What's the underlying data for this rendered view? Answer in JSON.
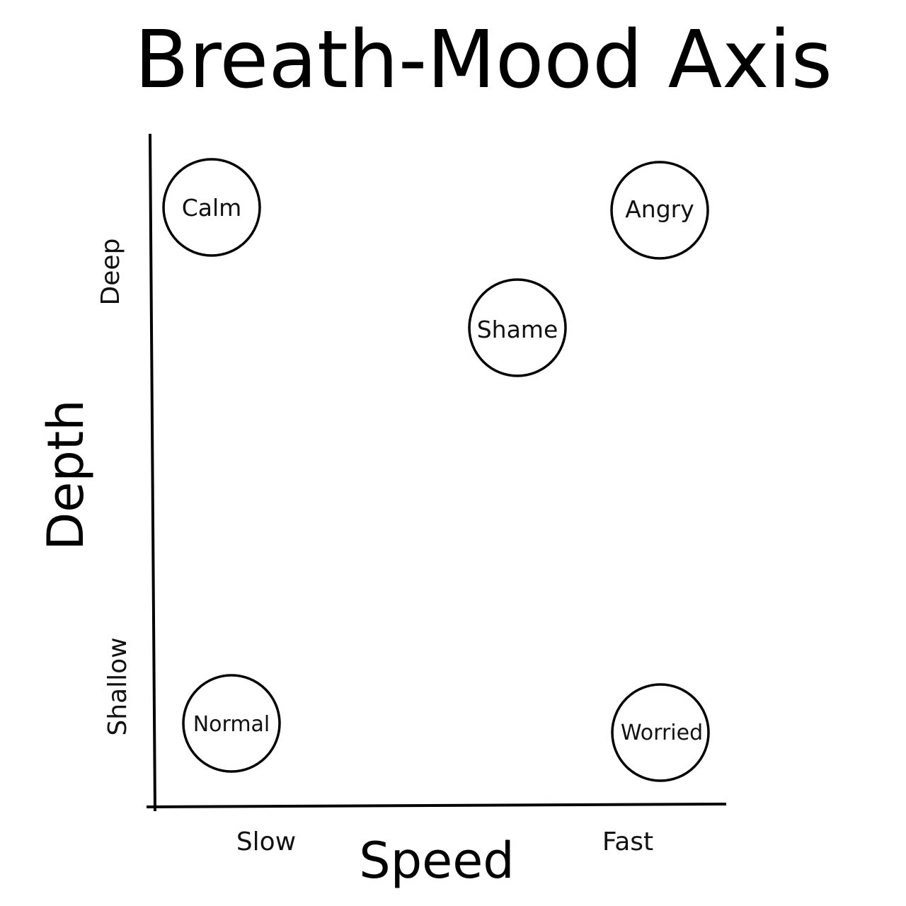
{
  "diagram": {
    "title": "Breath-Mood Axis",
    "x_axis": {
      "title": "Speed",
      "low_label": "Slow",
      "high_label": "Fast"
    },
    "y_axis": {
      "title": "Depth",
      "high_label": "Deep",
      "low_label": "Shallow"
    },
    "moods": [
      {
        "id": "calm",
        "label": "Calm"
      },
      {
        "id": "angry",
        "label": "Angry"
      },
      {
        "id": "shame",
        "label": "Shame"
      },
      {
        "id": "normal",
        "label": "Normal"
      },
      {
        "id": "worried",
        "label": "Worried"
      }
    ]
  }
}
